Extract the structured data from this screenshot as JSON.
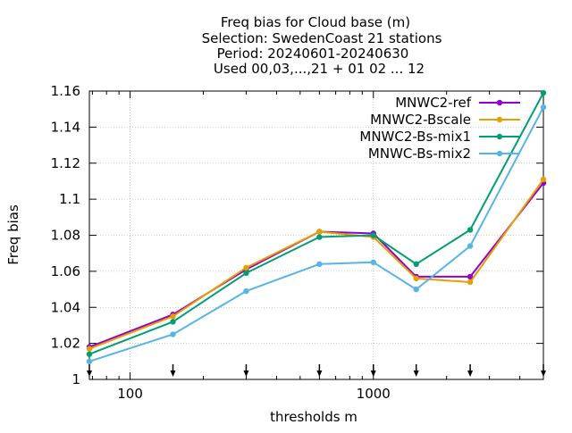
{
  "chart_data": {
    "type": "line",
    "title_lines": [
      "Freq bias  for Cloud base (m)",
      "Selection: SwedenCoast     21 stations",
      "Period: 20240601-20240630",
      "Used 00,03,...,21 + 01 02 ... 12"
    ],
    "xlabel": "thresholds m",
    "ylabel": "Freq bias",
    "x_scale": "log",
    "xlim": [
      68,
      5000
    ],
    "ylim": [
      1.0,
      1.16
    ],
    "x_ticks": [
      100,
      1000
    ],
    "x_tick_labels": [
      "100",
      "1000"
    ],
    "y_ticks": [
      1.0,
      1.02,
      1.04,
      1.06,
      1.08,
      1.1,
      1.12,
      1.14,
      1.16
    ],
    "y_tick_labels": [
      "1",
      "1.02",
      "1.04",
      "1.06",
      "1.08",
      "1.1",
      "1.12",
      "1.14",
      "1.16"
    ],
    "threshold_markers": [
      68,
      150,
      300,
      600,
      1000,
      1500,
      2500,
      5000
    ],
    "grid": true,
    "legend_position": "top-right",
    "x": [
      68,
      150,
      300,
      600,
      1000,
      1500,
      2500,
      5000
    ],
    "series": [
      {
        "name": "MNWC2-ref",
        "color": "#9400d3",
        "values": [
          1.018,
          1.036,
          1.061,
          1.082,
          1.081,
          1.057,
          1.057,
          1.109
        ]
      },
      {
        "name": "MNWC2-Bscale",
        "color": "#e69f00",
        "values": [
          1.017,
          1.035,
          1.062,
          1.082,
          1.079,
          1.056,
          1.054,
          1.111
        ]
      },
      {
        "name": "MNWC2-Bs-mix1",
        "color": "#009e73",
        "values": [
          1.014,
          1.032,
          1.059,
          1.079,
          1.08,
          1.064,
          1.083,
          1.159
        ]
      },
      {
        "name": "MNWC-Bs-mix2",
        "color": "#56b4e9",
        "values": [
          1.01,
          1.025,
          1.049,
          1.064,
          1.065,
          1.05,
          1.074,
          1.151
        ]
      }
    ]
  }
}
